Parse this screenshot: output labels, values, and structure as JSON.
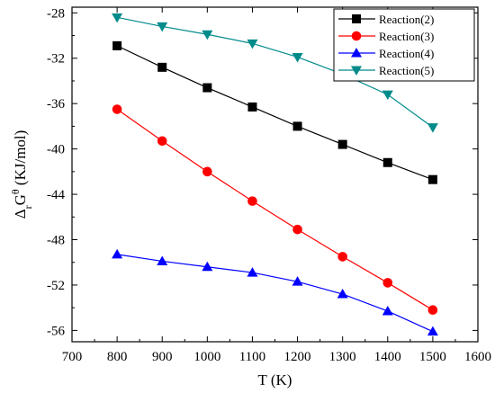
{
  "chart_data": {
    "type": "line",
    "title": "",
    "xlabel": "T (K)",
    "ylabel": {
      "prefix": "Δ",
      "sub": "r",
      "main": "G",
      "sup": "θ",
      "unit": " (KJ/mol)"
    },
    "xlim": [
      700,
      1600
    ],
    "ylim": [
      -57,
      -27.5
    ],
    "xticks": [
      700,
      800,
      900,
      1000,
      1100,
      1200,
      1300,
      1400,
      1500,
      1600
    ],
    "yticks": [
      -56,
      -52,
      -48,
      -44,
      -40,
      -36,
      -32,
      -28
    ],
    "grid": false,
    "legend_position": "top-right",
    "x": [
      800,
      900,
      1000,
      1100,
      1200,
      1300,
      1400,
      1500
    ],
    "series": [
      {
        "name": "Reaction(2)",
        "color": "#000000",
        "marker": "square",
        "values": [
          -30.9,
          -32.8,
          -34.6,
          -36.3,
          -38.0,
          -39.6,
          -41.2,
          -42.7
        ]
      },
      {
        "name": "Reaction(3)",
        "color": "#ff0000",
        "marker": "circle",
        "values": [
          -36.5,
          -39.3,
          -42.0,
          -44.6,
          -47.1,
          -49.5,
          -51.8,
          -54.2
        ]
      },
      {
        "name": "Reaction(4)",
        "color": "#0000ff",
        "marker": "triangle-up",
        "values": [
          -49.3,
          -49.9,
          -50.4,
          -50.9,
          -51.7,
          -52.8,
          -54.3,
          -56.1
        ]
      },
      {
        "name": "Reaction(5)",
        "color": "#008b8b",
        "marker": "triangle-down",
        "values": [
          -28.4,
          -29.2,
          -29.9,
          -30.7,
          -31.9,
          -33.4,
          -35.2,
          -38.1
        ]
      }
    ]
  }
}
